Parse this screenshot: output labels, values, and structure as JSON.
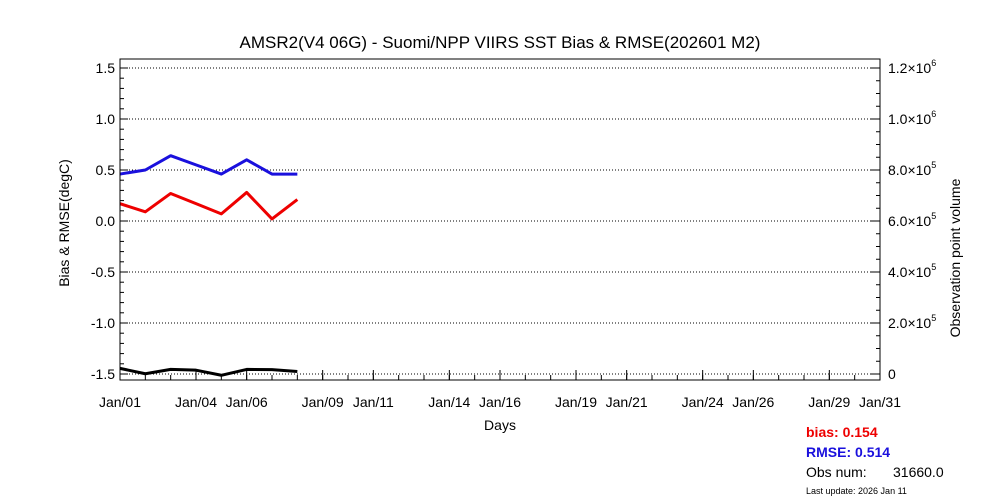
{
  "colors": {
    "bias": "#ee0000",
    "rmse": "#1a10dd",
    "obs": "#000000",
    "grid": "#000000"
  },
  "stats": {
    "bias_label": "bias:",
    "bias_value": "0.154",
    "rmse_label": "RMSE:",
    "rmse_value": "0.514",
    "obs_label": "Obs num:",
    "obs_value": "31660.0",
    "update_text": "Last update: 2026 Jan 11"
  },
  "chart_data": {
    "type": "line",
    "title": "AMSR2(V4 06G) - Suomi/NPP VIIRS SST Bias & RMSE(202601 M2)",
    "xlabel": "Days",
    "ylabel": "Bias & RMSE(degC)",
    "y2label": "Observation point volume",
    "xlim": [
      1,
      31
    ],
    "ylim": [
      -1.5,
      1.5
    ],
    "y2lim": [
      0,
      1200000
    ],
    "x_ticks": [
      1,
      4,
      6,
      9,
      11,
      14,
      16,
      19,
      21,
      24,
      26,
      29,
      31
    ],
    "x_tick_labels": [
      "Jan/01",
      "Jan/04",
      "Jan/06",
      "Jan/09",
      "Jan/11",
      "Jan/14",
      "Jan/16",
      "Jan/19",
      "Jan/21",
      "Jan/24",
      "Jan/26",
      "Jan/29",
      "Jan/31"
    ],
    "y_ticks": [
      -1.5,
      -1.0,
      -0.5,
      0.0,
      0.5,
      1.0,
      1.5
    ],
    "y_tick_labels": [
      "-1.5",
      "-1.0",
      "-0.5",
      "0.0",
      "0.5",
      "1.0",
      "1.5"
    ],
    "y2_ticks": [
      0,
      200000,
      400000,
      600000,
      800000,
      1000000,
      1200000
    ],
    "y2_tick_labels": [
      {
        "base": "0",
        "exp": ""
      },
      {
        "base": "2.0×10",
        "exp": "5"
      },
      {
        "base": "4.0×10",
        "exp": "5"
      },
      {
        "base": "6.0×10",
        "exp": "5"
      },
      {
        "base": "8.0×10",
        "exp": "5"
      },
      {
        "base": "1.0×10",
        "exp": "6"
      },
      {
        "base": "1.2×10",
        "exp": "6"
      }
    ],
    "grid": "horizontal dotted",
    "x": [
      1,
      2,
      3,
      4,
      5,
      6,
      7,
      8
    ],
    "series": [
      {
        "key": "rmse",
        "axis": "left",
        "values": [
          0.46,
          0.5,
          0.64,
          0.55,
          0.46,
          0.6,
          0.46,
          0.46
        ]
      },
      {
        "key": "bias",
        "axis": "left",
        "values": [
          0.17,
          0.09,
          0.27,
          0.17,
          0.07,
          0.28,
          0.02,
          0.21
        ]
      },
      {
        "key": "obs",
        "axis": "right",
        "values": [
          22000,
          1000,
          18000,
          15000,
          -5000,
          18000,
          17000,
          10000
        ]
      }
    ]
  }
}
